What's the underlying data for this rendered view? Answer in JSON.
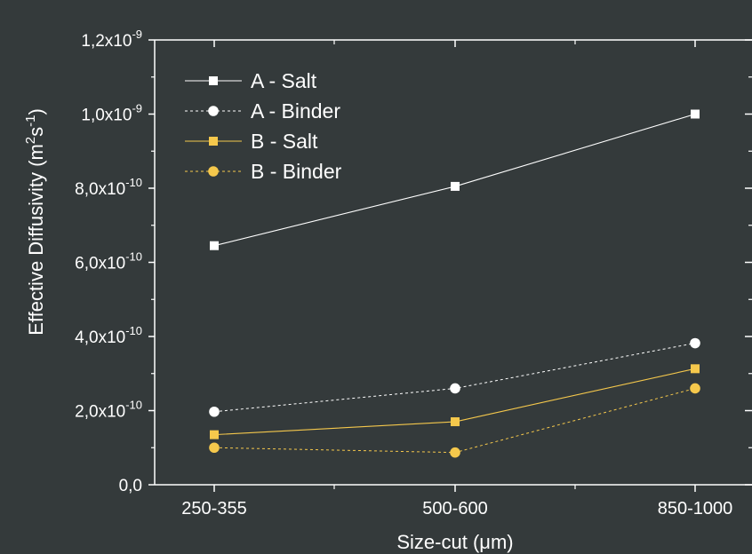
{
  "chart_data": {
    "type": "line",
    "categories": [
      "250-355",
      "500-600",
      "850-1000"
    ],
    "xlabel": "Size-cut (μm)",
    "ylabel": {
      "prefix": "Effective Diffusivity (m",
      "sup1": "2",
      "mid": "s",
      "sup2": "-1",
      "suffix": ")"
    },
    "ylim": [
      0,
      1.2e-09
    ],
    "yticks": [
      {
        "mantissa": "0,0",
        "exp": ""
      },
      {
        "mantissa": "2,0x10",
        "exp": "-10"
      },
      {
        "mantissa": "4,0x10",
        "exp": "-10"
      },
      {
        "mantissa": "6,0x10",
        "exp": "-10"
      },
      {
        "mantissa": "8,0x10",
        "exp": "-10"
      },
      {
        "mantissa": "1,0x10",
        "exp": "-9"
      },
      {
        "mantissa": "1,2x10",
        "exp": "-9"
      }
    ],
    "ytick_values": [
      0,
      2e-10,
      4e-10,
      6e-10,
      8e-10,
      1e-09,
      1.2e-09
    ],
    "legend_position": "top-left",
    "grid": false,
    "series": [
      {
        "name": "A - Salt",
        "values": [
          6.45e-10,
          8.05e-10,
          1e-09
        ],
        "color": "#ffffff",
        "marker": "square",
        "dashed": false
      },
      {
        "name": "A - Binder",
        "values": [
          1.97e-10,
          2.6e-10,
          3.82e-10
        ],
        "color": "#ffffff",
        "marker": "circle",
        "dashed": true
      },
      {
        "name": "B - Salt",
        "values": [
          1.35e-10,
          1.7e-10,
          3.13e-10
        ],
        "color": "#f5c84c",
        "marker": "square",
        "dashed": false
      },
      {
        "name": "B - Binder",
        "values": [
          1e-10,
          8.7e-11,
          2.6e-10
        ],
        "color": "#f5c84c",
        "marker": "circle",
        "dashed": true
      }
    ]
  }
}
